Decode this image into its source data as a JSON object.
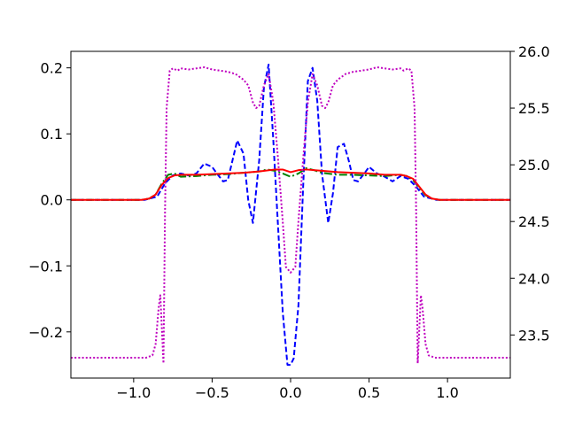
{
  "chart_data": {
    "type": "line",
    "title": "",
    "xlabel": "",
    "ylabel": "",
    "y2label": "",
    "grid": false,
    "legend": "none",
    "xlim": [
      -1.4,
      1.4
    ],
    "ylim": [
      -0.27,
      0.225
    ],
    "y2lim": [
      23.12,
      26.0
    ],
    "x_ticks": [
      -1.0,
      -0.5,
      0.0,
      0.5,
      1.0
    ],
    "x_tick_labels": [
      "−1.0",
      "−0.5",
      "0.0",
      "0.5",
      "1.0"
    ],
    "y_ticks": [
      -0.2,
      -0.1,
      0.0,
      0.1,
      0.2
    ],
    "y_tick_labels": [
      "−0.2",
      "−0.1",
      "0.0",
      "0.1",
      "0.2"
    ],
    "y2_ticks": [
      23.5,
      24.0,
      24.5,
      25.0,
      25.5,
      26.0
    ],
    "y2_tick_labels": [
      "23.5",
      "24.0",
      "24.5",
      "25.0",
      "25.5",
      "26.0"
    ],
    "series": [
      {
        "axis": "left",
        "color": "#0000ff",
        "style": "dashed",
        "x": [
          -1.4,
          -0.93,
          -0.85,
          -0.8,
          -0.75,
          -0.7,
          -0.65,
          -0.6,
          -0.55,
          -0.5,
          -0.47,
          -0.43,
          -0.4,
          -0.37,
          -0.34,
          -0.3,
          -0.27,
          -0.24,
          -0.2,
          -0.17,
          -0.14,
          -0.11,
          -0.08,
          -0.05,
          -0.02,
          0.0,
          0.02,
          0.05,
          0.08,
          0.11,
          0.14,
          0.17,
          0.2,
          0.24,
          0.27,
          0.3,
          0.34,
          0.37,
          0.4,
          0.43,
          0.47,
          0.5,
          0.55,
          0.6,
          0.65,
          0.7,
          0.75,
          0.8,
          0.85,
          0.93,
          1.4
        ],
        "y": [
          0.0,
          0.0,
          0.005,
          0.025,
          0.037,
          0.04,
          0.037,
          0.04,
          0.055,
          0.05,
          0.04,
          0.028,
          0.03,
          0.06,
          0.09,
          0.07,
          0.0,
          -0.035,
          0.06,
          0.17,
          0.205,
          0.09,
          -0.04,
          -0.17,
          -0.25,
          -0.25,
          -0.24,
          -0.16,
          0.02,
          0.18,
          0.2,
          0.15,
          0.04,
          -0.035,
          0.01,
          0.08,
          0.085,
          0.06,
          0.03,
          0.028,
          0.04,
          0.05,
          0.04,
          0.035,
          0.028,
          0.036,
          0.032,
          0.02,
          0.005,
          0.0,
          0.0
        ]
      },
      {
        "axis": "left",
        "color": "#008000",
        "style": "dashdot",
        "x": [
          -1.4,
          -0.95,
          -0.9,
          -0.86,
          -0.82,
          -0.78,
          -0.74,
          -0.7,
          -0.6,
          -0.5,
          -0.4,
          -0.3,
          -0.2,
          -0.15,
          -0.1,
          -0.05,
          0.0,
          0.05,
          0.1,
          0.15,
          0.2,
          0.3,
          0.4,
          0.5,
          0.6,
          0.7,
          0.74,
          0.78,
          0.82,
          0.86,
          0.9,
          0.95,
          1.4
        ],
        "y": [
          0.0,
          0.0,
          0.002,
          0.008,
          0.025,
          0.038,
          0.04,
          0.035,
          0.036,
          0.038,
          0.039,
          0.041,
          0.043,
          0.046,
          0.044,
          0.04,
          0.035,
          0.04,
          0.048,
          0.045,
          0.041,
          0.038,
          0.038,
          0.037,
          0.036,
          0.038,
          0.036,
          0.03,
          0.018,
          0.007,
          0.002,
          0.0,
          0.0
        ]
      },
      {
        "axis": "left",
        "color": "#ff0000",
        "style": "solid",
        "x": [
          -1.4,
          -0.95,
          -0.9,
          -0.86,
          -0.82,
          -0.78,
          -0.74,
          -0.7,
          -0.6,
          -0.5,
          -0.4,
          -0.3,
          -0.2,
          -0.1,
          -0.05,
          0.0,
          0.05,
          0.1,
          0.2,
          0.3,
          0.4,
          0.5,
          0.6,
          0.7,
          0.74,
          0.78,
          0.82,
          0.86,
          0.9,
          0.95,
          1.4
        ],
        "y": [
          0.0,
          0.0,
          0.002,
          0.008,
          0.023,
          0.033,
          0.037,
          0.038,
          0.038,
          0.039,
          0.04,
          0.041,
          0.043,
          0.046,
          0.046,
          0.042,
          0.045,
          0.046,
          0.044,
          0.042,
          0.041,
          0.04,
          0.038,
          0.038,
          0.036,
          0.032,
          0.02,
          0.008,
          0.002,
          0.0,
          0.0
        ]
      },
      {
        "axis": "right",
        "color": "#bf00bf",
        "style": "dotted",
        "x": [
          -1.4,
          -0.92,
          -0.88,
          -0.86,
          -0.84,
          -0.83,
          -0.81,
          -0.8,
          -0.79,
          -0.77,
          -0.75,
          -0.72,
          -0.7,
          -0.65,
          -0.6,
          -0.55,
          -0.5,
          -0.45,
          -0.4,
          -0.35,
          -0.3,
          -0.27,
          -0.24,
          -0.22,
          -0.2,
          -0.17,
          -0.14,
          -0.11,
          -0.08,
          -0.05,
          -0.03,
          0.0,
          0.03,
          0.05,
          0.08,
          0.11,
          0.14,
          0.17,
          0.2,
          0.22,
          0.24,
          0.27,
          0.3,
          0.35,
          0.4,
          0.45,
          0.5,
          0.55,
          0.6,
          0.65,
          0.7,
          0.72,
          0.75,
          0.77,
          0.79,
          0.8,
          0.81,
          0.83,
          0.84,
          0.86,
          0.88,
          0.92,
          1.4
        ],
        "y": [
          23.3,
          23.3,
          23.32,
          23.42,
          23.75,
          23.85,
          23.25,
          24.6,
          25.5,
          25.83,
          25.85,
          25.83,
          25.85,
          25.84,
          25.85,
          25.86,
          25.84,
          25.83,
          25.82,
          25.8,
          25.75,
          25.7,
          25.55,
          25.5,
          25.52,
          25.7,
          25.8,
          25.55,
          25.05,
          24.5,
          24.1,
          24.05,
          24.1,
          24.5,
          25.05,
          25.55,
          25.8,
          25.7,
          25.52,
          25.5,
          25.55,
          25.7,
          25.75,
          25.8,
          25.82,
          25.83,
          25.84,
          25.86,
          25.85,
          25.84,
          25.85,
          25.83,
          25.85,
          25.83,
          25.5,
          24.6,
          23.25,
          23.85,
          23.75,
          23.42,
          23.32,
          23.3,
          23.3
        ]
      }
    ]
  }
}
